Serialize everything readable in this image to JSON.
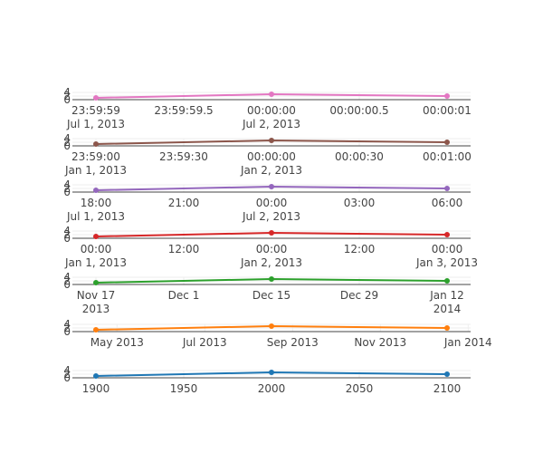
{
  "chart_data": [
    {
      "type": "line",
      "color": "#e377c2",
      "x": [
        "2013-07-01 23:59:59",
        "2013-07-02 00:00:00",
        "2013-07-02 00:00:01"
      ],
      "y": [
        1,
        3,
        2
      ],
      "xlim": [
        "2013-07-01 23:59:59",
        "2013-07-02 00:00:01"
      ],
      "ylim": [
        0,
        4
      ],
      "yticks": [
        "0",
        "2",
        "4"
      ],
      "xticks": [
        {
          "v": 0,
          "line1": "23:59:59",
          "line2": "Jul 1, 2013"
        },
        {
          "v": 0.5,
          "line1": "23:59:59.5",
          "line2": ""
        },
        {
          "v": 1,
          "line1": "00:00:00",
          "line2": "Jul 2, 2013"
        },
        {
          "v": 1.5,
          "line1": "00:00:00.5",
          "line2": ""
        },
        {
          "v": 2,
          "line1": "00:00:01",
          "line2": ""
        }
      ]
    },
    {
      "type": "line",
      "color": "#8c564b",
      "x": [
        "2013-01-01 23:59:00",
        "2013-01-02 00:00:00",
        "2013-01-02 00:01:00"
      ],
      "y": [
        1,
        3,
        2
      ],
      "xlim": [
        "2013-01-01 23:59:00",
        "2013-01-02 00:01:00"
      ],
      "ylim": [
        0,
        4
      ],
      "yticks": [
        "0",
        "2",
        "4"
      ],
      "xticks": [
        {
          "v": 0,
          "line1": "23:59:00",
          "line2": "Jan 1, 2013"
        },
        {
          "v": 0.5,
          "line1": "23:59:30",
          "line2": ""
        },
        {
          "v": 1,
          "line1": "00:00:00",
          "line2": "Jan 2, 2013"
        },
        {
          "v": 1.5,
          "line1": "00:00:30",
          "line2": ""
        },
        {
          "v": 2,
          "line1": "00:01:00",
          "line2": ""
        }
      ]
    },
    {
      "type": "line",
      "color": "#9467bd",
      "x": [
        "2013-07-01 18:00",
        "2013-07-02 00:00",
        "2013-07-02 06:00"
      ],
      "y": [
        1,
        3,
        2
      ],
      "xlim": [
        "2013-07-01 17:00",
        "2013-07-02 07:00"
      ],
      "ylim": [
        0,
        4
      ],
      "yticks": [
        "0",
        "2",
        "4"
      ],
      "xticks": [
        {
          "v": 0,
          "line1": "18:00",
          "line2": "Jul 1, 2013"
        },
        {
          "v": 0.5,
          "line1": "21:00",
          "line2": ""
        },
        {
          "v": 1,
          "line1": "00:00",
          "line2": "Jul 2, 2013"
        },
        {
          "v": 1.5,
          "line1": "03:00",
          "line2": ""
        },
        {
          "v": 2,
          "line1": "06:00",
          "line2": ""
        }
      ]
    },
    {
      "type": "line",
      "color": "#d62728",
      "x": [
        "2013-01-01 00:00",
        "2013-01-02 00:00",
        "2013-01-03 00:00"
      ],
      "y": [
        1,
        3,
        2
      ],
      "xlim": [
        "2013-01-01 00:00",
        "2013-01-03 00:00"
      ],
      "ylim": [
        0,
        4
      ],
      "yticks": [
        "0",
        "2",
        "4"
      ],
      "xticks": [
        {
          "v": 0,
          "line1": "00:00",
          "line2": "Jan 1, 2013"
        },
        {
          "v": 0.5,
          "line1": "12:00",
          "line2": ""
        },
        {
          "v": 1,
          "line1": "00:00",
          "line2": "Jan 2, 2013"
        },
        {
          "v": 1.5,
          "line1": "12:00",
          "line2": ""
        },
        {
          "v": 2,
          "line1": "00:00",
          "line2": "Jan 3, 2013"
        }
      ]
    },
    {
      "type": "line",
      "color": "#2ca02c",
      "x": [
        "2013-11-17",
        "2013-12-15",
        "2014-01-12"
      ],
      "y": [
        1,
        3,
        2
      ],
      "xlim": [
        "2013-11-17",
        "2014-01-12"
      ],
      "ylim": [
        0,
        4
      ],
      "yticks": [
        "0",
        "2",
        "4"
      ],
      "xticks": [
        {
          "v": 0,
          "line1": "Nov 17",
          "line2": "2013"
        },
        {
          "v": 0.5,
          "line1": "Dec 1",
          "line2": ""
        },
        {
          "v": 1,
          "line1": "Dec 15",
          "line2": ""
        },
        {
          "v": 1.5,
          "line1": "Dec 29",
          "line2": ""
        },
        {
          "v": 2,
          "line1": "Jan 12",
          "line2": "2014"
        }
      ]
    },
    {
      "type": "line",
      "color": "#ff7f0e",
      "x": [
        "2013-04",
        "2013-09",
        "2014-01"
      ],
      "y": [
        1,
        3,
        2
      ],
      "xlim": [
        "2013-04",
        "2014-01"
      ],
      "ylim": [
        0,
        4
      ],
      "yticks": [
        "0",
        "2",
        "4"
      ],
      "xticks": [
        {
          "v": 0.12,
          "line1": "May 2013",
          "line2": ""
        },
        {
          "v": 0.62,
          "line1": "Jul 2013",
          "line2": ""
        },
        {
          "v": 1.12,
          "line1": "Sep 2013",
          "line2": ""
        },
        {
          "v": 1.62,
          "line1": "Nov 2013",
          "line2": ""
        },
        {
          "v": 2.12,
          "line1": "Jan 2014",
          "line2": ""
        }
      ]
    },
    {
      "type": "line",
      "color": "#1f77b4",
      "x": [
        1900,
        2000,
        2100
      ],
      "y": [
        1,
        3,
        2
      ],
      "xlim": [
        1900,
        2100
      ],
      "ylim": [
        0,
        4
      ],
      "yticks": [
        "0",
        "2",
        "4"
      ],
      "xticks": [
        {
          "v": 0,
          "line1": "1900",
          "line2": ""
        },
        {
          "v": 0.5,
          "line1": "1950",
          "line2": ""
        },
        {
          "v": 1,
          "line1": "2000",
          "line2": ""
        },
        {
          "v": 1.5,
          "line1": "2050",
          "line2": ""
        },
        {
          "v": 2,
          "line1": "2100",
          "line2": ""
        }
      ]
    }
  ]
}
